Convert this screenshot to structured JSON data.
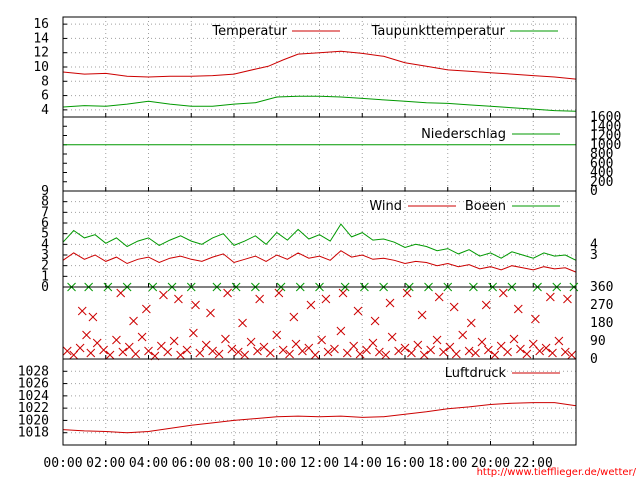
{
  "source_link": "http://www.tiefflieger.de/wetter/",
  "colors": {
    "red": "#cc0000",
    "green": "#009900",
    "grid": "#a0a0a0",
    "frame": "#000000"
  },
  "x_axis": {
    "ticks": [
      "00:00",
      "02:00",
      "04:00",
      "06:00",
      "08:00",
      "10:00",
      "12:00",
      "14:00",
      "16:00",
      "18:00",
      "20:00",
      "22:00"
    ],
    "range_hours": [
      0,
      24
    ]
  },
  "chart_data": [
    {
      "type": "line",
      "legend_placement": "top",
      "ylim": [
        3,
        17
      ],
      "y_ticks": [
        4,
        6,
        8,
        10,
        12,
        14,
        16
      ],
      "series": [
        {
          "name": "Temperatur",
          "color": "#cc0000",
          "hours": [
            0,
            1,
            2,
            3,
            4,
            5,
            6,
            7,
            8,
            9,
            9.6,
            10.3,
            11,
            12,
            13,
            14,
            15,
            16,
            17,
            18,
            19,
            20,
            21,
            22,
            23,
            24
          ],
          "values": [
            9.3,
            9.0,
            9.1,
            8.7,
            8.6,
            8.7,
            8.7,
            8.8,
            9.0,
            9.7,
            10.1,
            11.0,
            11.8,
            12.0,
            12.2,
            11.9,
            11.5,
            10.6,
            10.1,
            9.6,
            9.4,
            9.2,
            9.0,
            8.8,
            8.6,
            8.3
          ]
        },
        {
          "name": "Taupunkttemperatur",
          "color": "#009900",
          "hours": [
            0,
            1,
            2,
            3,
            4,
            5,
            6,
            7,
            8,
            9,
            10,
            11,
            12,
            13,
            14,
            15,
            16,
            17,
            18,
            19,
            20,
            21,
            22,
            23,
            24
          ],
          "values": [
            4.4,
            4.6,
            4.5,
            4.8,
            5.2,
            4.8,
            4.5,
            4.5,
            4.8,
            5.0,
            5.8,
            5.9,
            5.9,
            5.8,
            5.6,
            5.4,
            5.2,
            5.0,
            4.9,
            4.7,
            4.5,
            4.3,
            4.1,
            3.9,
            3.8
          ]
        }
      ]
    },
    {
      "type": "line",
      "legend_placement": "top",
      "ylim": [
        0,
        1600
      ],
      "y_ticks": [
        0,
        200,
        400,
        600,
        800,
        1000,
        1200,
        1400,
        1600
      ],
      "series": [
        {
          "name": "Niederschlag",
          "color": "#009900",
          "hours": [
            0,
            24
          ],
          "values": [
            1000,
            1000
          ]
        }
      ]
    },
    {
      "type": "line",
      "legend_placement": "top",
      "ylim": [
        0,
        9
      ],
      "y_ticks": [
        0,
        1,
        2,
        3,
        4,
        5,
        6,
        7,
        8,
        9
      ],
      "right_ticks": [
        "3",
        "4"
      ],
      "series": [
        {
          "name": "Wind",
          "color": "#cc0000",
          "hours": [
            0,
            0.5,
            1,
            1.5,
            2,
            2.5,
            3,
            3.5,
            4,
            4.5,
            5,
            5.5,
            6,
            6.5,
            7,
            7.5,
            8,
            8.5,
            9,
            9.5,
            10,
            10.5,
            11,
            11.5,
            12,
            12.5,
            13,
            13.5,
            14,
            14.5,
            15,
            15.5,
            16,
            16.5,
            17,
            17.5,
            18,
            18.5,
            19,
            19.5,
            20,
            20.5,
            21,
            21.5,
            22,
            22.5,
            23,
            23.5,
            24
          ],
          "values": [
            2.5,
            3.2,
            2.6,
            3.0,
            2.4,
            2.8,
            2.2,
            2.6,
            2.8,
            2.3,
            2.7,
            2.9,
            2.6,
            2.4,
            2.8,
            3.1,
            2.3,
            2.6,
            2.9,
            2.4,
            3.0,
            2.6,
            3.2,
            2.7,
            2.9,
            2.5,
            3.4,
            2.8,
            3.0,
            2.6,
            2.7,
            2.5,
            2.2,
            2.4,
            2.3,
            2.0,
            2.2,
            1.9,
            2.1,
            1.7,
            1.9,
            1.6,
            2.0,
            1.8,
            1.6,
            1.9,
            1.7,
            1.8,
            1.4
          ]
        },
        {
          "name": "Boeen",
          "color": "#009900",
          "hours": [
            0,
            0.5,
            1,
            1.5,
            2,
            2.5,
            3,
            3.5,
            4,
            4.5,
            5,
            5.5,
            6,
            6.5,
            7,
            7.5,
            8,
            8.5,
            9,
            9.5,
            10,
            10.5,
            11,
            11.5,
            12,
            12.5,
            13,
            13.5,
            14,
            14.5,
            15,
            15.5,
            16,
            16.5,
            17,
            17.5,
            18,
            18.5,
            19,
            19.5,
            20,
            20.5,
            21,
            21.5,
            22,
            22.5,
            23,
            23.5,
            24
          ],
          "values": [
            4.2,
            5.3,
            4.6,
            4.9,
            4.1,
            4.6,
            3.8,
            4.3,
            4.6,
            3.9,
            4.4,
            4.8,
            4.3,
            4.0,
            4.6,
            5.0,
            3.9,
            4.3,
            4.8,
            4.0,
            5.1,
            4.4,
            5.4,
            4.5,
            4.9,
            4.3,
            5.9,
            4.7,
            5.1,
            4.4,
            4.5,
            4.2,
            3.7,
            4.0,
            3.8,
            3.4,
            3.6,
            3.1,
            3.5,
            2.9,
            3.2,
            2.7,
            3.3,
            3.0,
            2.7,
            3.2,
            2.9,
            3.0,
            2.5
          ]
        }
      ]
    },
    {
      "type": "scatter",
      "ylim": [
        0,
        360
      ],
      "right_ticks": [
        "0",
        "90",
        "180",
        "270",
        "360"
      ],
      "series": [
        {
          "name": "",
          "color": "#cc0000",
          "marker": "x",
          "hours": [
            0.2,
            0.5,
            0.8,
            1.1,
            1.3,
            1.6,
            1.9,
            2.2,
            2.5,
            2.8,
            3.1,
            3.4,
            3.7,
            4.0,
            4.3,
            4.6,
            4.9,
            5.2,
            5.5,
            5.8,
            6.1,
            6.4,
            6.7,
            7.0,
            7.3,
            7.6,
            7.9,
            8.2,
            8.5,
            8.8,
            9.1,
            9.4,
            9.7,
            10.0,
            10.3,
            10.6,
            10.9,
            11.2,
            11.5,
            11.8,
            12.1,
            12.4,
            12.7,
            13.0,
            13.3,
            13.6,
            13.9,
            14.2,
            14.5,
            14.8,
            15.1,
            15.4,
            15.7,
            16.0,
            16.3,
            16.6,
            16.9,
            17.2,
            17.5,
            17.8,
            18.1,
            18.4,
            18.7,
            19.0,
            19.3,
            19.6,
            19.9,
            20.2,
            20.5,
            20.8,
            21.1,
            21.4,
            21.7,
            22.0,
            22.3,
            22.6,
            22.9,
            23.2,
            23.5,
            23.8,
            0.9,
            1.4,
            2.7,
            3.3,
            3.9,
            4.7,
            5.4,
            6.2,
            6.9,
            7.7,
            8.4,
            9.2,
            10.1,
            10.8,
            11.6,
            12.3,
            13.1,
            13.8,
            14.6,
            15.3,
            16.1,
            16.8,
            17.6,
            18.3,
            19.1,
            19.8,
            20.6,
            21.3,
            22.1,
            22.8,
            23.6
          ],
          "values": [
            40,
            20,
            55,
            120,
            30,
            80,
            45,
            20,
            95,
            35,
            60,
            25,
            110,
            40,
            15,
            65,
            35,
            90,
            20,
            45,
            130,
            30,
            70,
            40,
            25,
            100,
            50,
            35,
            20,
            85,
            40,
            60,
            30,
            120,
            45,
            25,
            75,
            40,
            55,
            20,
            95,
            35,
            50,
            140,
            30,
            65,
            25,
            45,
            80,
            35,
            20,
            110,
            40,
            55,
            30,
            70,
            20,
            45,
            95,
            35,
            60,
            25,
            120,
            40,
            30,
            85,
            45,
            20,
            65,
            35,
            100,
            50,
            25,
            75,
            40,
            55,
            30,
            90,
            35,
            20,
            240,
            210,
            330,
            190,
            250,
            320,
            300,
            270,
            230,
            330,
            180,
            300,
            330,
            210,
            270,
            300,
            330,
            240,
            190,
            280,
            330,
            220,
            310,
            260,
            180,
            270,
            330,
            250,
            200,
            310,
            300
          ]
        },
        {
          "name": "",
          "color": "#009900",
          "marker": "x",
          "value": 360,
          "hours": [
            0.4,
            1.2,
            2.1,
            3.0,
            4.2,
            5.1,
            6.0,
            7.2,
            8.1,
            9.0,
            10.2,
            11.1,
            12.0,
            13.2,
            14.1,
            15.0,
            16.2,
            17.1,
            18.0,
            19.2,
            20.1,
            21.0,
            22.2,
            23.1,
            23.9
          ],
          "values": [
            360,
            360,
            360,
            360,
            360,
            360,
            360,
            360,
            360,
            360,
            360,
            360,
            360,
            360,
            360,
            360,
            360,
            360,
            360,
            360,
            360,
            360,
            360,
            360,
            360
          ]
        }
      ]
    },
    {
      "type": "line",
      "legend_placement": "top",
      "ylim": [
        1016,
        1030
      ],
      "y_ticks": [
        1018,
        1020,
        1022,
        1024,
        1026,
        1028
      ],
      "series": [
        {
          "name": "Luftdruck",
          "color": "#cc0000",
          "hours": [
            0,
            1,
            2,
            3,
            4,
            5,
            6,
            7,
            8,
            9,
            10,
            11,
            12,
            13,
            14,
            15,
            16,
            17,
            18,
            19,
            20,
            21,
            22,
            23,
            24
          ],
          "values": [
            1018.5,
            1018.3,
            1018.2,
            1018.0,
            1018.2,
            1018.7,
            1019.2,
            1019.6,
            1020.0,
            1020.3,
            1020.6,
            1020.7,
            1020.6,
            1020.7,
            1020.5,
            1020.6,
            1021.0,
            1021.4,
            1021.9,
            1022.2,
            1022.6,
            1022.8,
            1022.9,
            1022.9,
            1022.4
          ]
        }
      ]
    }
  ]
}
